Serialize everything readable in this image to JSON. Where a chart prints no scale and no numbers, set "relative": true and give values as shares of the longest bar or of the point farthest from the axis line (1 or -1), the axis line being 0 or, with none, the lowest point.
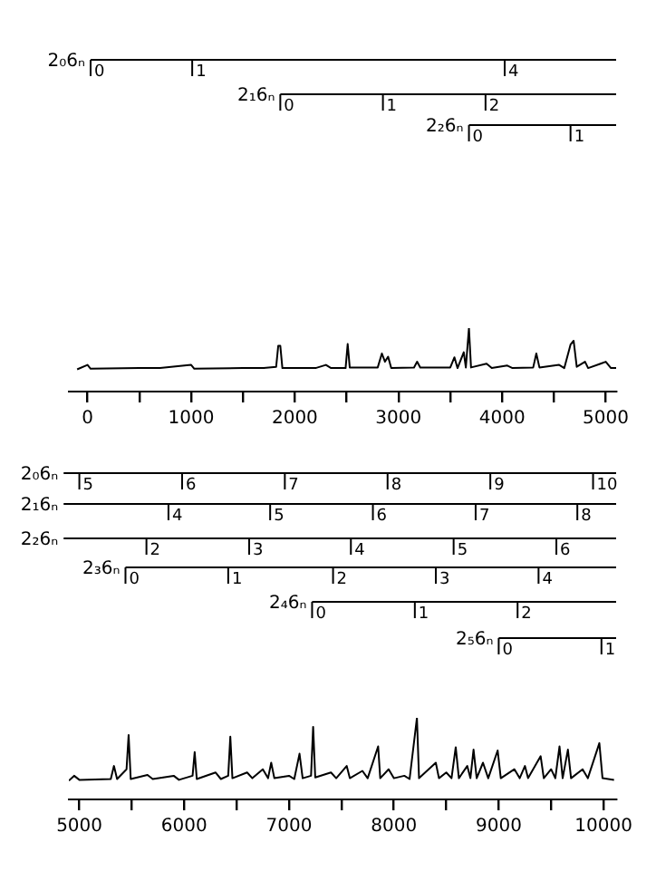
{
  "chart_data": [
    {
      "type": "line",
      "relative": true,
      "legend": false,
      "grid": false,
      "xlim": [
        -180,
        5100
      ],
      "xticks": [
        0,
        {
          "value": 500,
          "label": null
        },
        1000,
        {
          "value": 1500,
          "label": null
        },
        2000,
        {
          "value": 2500,
          "label": null
        },
        3000,
        {
          "value": 3500,
          "label": null
        },
        4000,
        {
          "value": 4500,
          "label": null
        },
        5000
      ],
      "series": [
        {
          "color": "#000000",
          "x": [
            -100,
            0,
            30,
            500,
            700,
            1000,
            1030,
            1500,
            1700,
            1820,
            1840,
            1860,
            1880,
            2200,
            2300,
            2350,
            2490,
            2510,
            2530,
            2800,
            2840,
            2870,
            2900,
            2930,
            3150,
            3180,
            3210,
            3500,
            3540,
            3570,
            3630,
            3650,
            3680,
            3700,
            3850,
            3900,
            4050,
            4100,
            4300,
            4330,
            4360,
            4550,
            4600,
            4660,
            4690,
            4720,
            4800,
            4830,
            4950,
            5000,
            5050,
            5100
          ],
          "values": [
            0.35,
            0.42,
            0.36,
            0.37,
            0.37,
            0.42,
            0.36,
            0.37,
            0.37,
            0.39,
            0.72,
            0.72,
            0.37,
            0.37,
            0.42,
            0.37,
            0.37,
            0.75,
            0.38,
            0.38,
            0.6,
            0.47,
            0.55,
            0.37,
            0.38,
            0.47,
            0.38,
            0.38,
            0.54,
            0.37,
            0.62,
            0.38,
            1,
            0.38,
            0.44,
            0.37,
            0.41,
            0.37,
            0.38,
            0.6,
            0.38,
            0.42,
            0.37,
            0.74,
            0.8,
            0.39,
            0.47,
            0.37,
            0.44,
            0.47,
            0.37,
            0.37
          ]
        }
      ],
      "annotations": [
        "2₀6ₙ",
        "0",
        "1",
        "4",
        "2₁6ₙ",
        "0",
        "1",
        "2",
        "2₂6ₙ",
        "0",
        "1"
      ]
    },
    {
      "type": "line",
      "relative": true,
      "legend": false,
      "grid": false,
      "xlim": [
        4900,
        10120
      ],
      "xticks": [
        5000,
        {
          "value": 5500,
          "label": null
        },
        6000,
        {
          "value": 6500,
          "label": null
        },
        7000,
        {
          "value": 7500,
          "label": null
        },
        8000,
        {
          "value": 8500,
          "label": null
        },
        9000,
        {
          "value": 9500,
          "label": null
        },
        10000
      ],
      "series": [
        {
          "color": "#000000",
          "x": [
            4900,
            4950,
            5000,
            5300,
            5330,
            5360,
            5450,
            5470,
            5490,
            5650,
            5700,
            5900,
            5950,
            6080,
            6100,
            6120,
            6300,
            6350,
            6420,
            6440,
            6460,
            6600,
            6650,
            6750,
            6800,
            6830,
            6860,
            7000,
            7050,
            7100,
            7130,
            7210,
            7230,
            7250,
            7400,
            7450,
            7550,
            7580,
            7700,
            7750,
            7850,
            7870,
            7950,
            8000,
            8100,
            8150,
            8220,
            8240,
            8400,
            8430,
            8500,
            8550,
            8590,
            8620,
            8700,
            8730,
            8760,
            8790,
            8850,
            8900,
            8990,
            9020,
            9150,
            9200,
            9250,
            9280,
            9400,
            9430,
            9500,
            9540,
            9580,
            9610,
            9660,
            9690,
            9800,
            9850,
            9960,
            9990,
            10100
          ],
          "values": [
            0.23,
            0.29,
            0.24,
            0.25,
            0.41,
            0.25,
            0.37,
            0.79,
            0.25,
            0.3,
            0.25,
            0.29,
            0.24,
            0.29,
            0.58,
            0.25,
            0.33,
            0.25,
            0.29,
            0.77,
            0.26,
            0.33,
            0.26,
            0.37,
            0.26,
            0.45,
            0.26,
            0.29,
            0.25,
            0.56,
            0.26,
            0.29,
            0.89,
            0.27,
            0.33,
            0.26,
            0.41,
            0.26,
            0.35,
            0.26,
            0.65,
            0.26,
            0.37,
            0.26,
            0.29,
            0.25,
            1,
            0.26,
            0.45,
            0.26,
            0.33,
            0.26,
            0.64,
            0.26,
            0.41,
            0.26,
            0.61,
            0.26,
            0.45,
            0.26,
            0.6,
            0.26,
            0.37,
            0.26,
            0.41,
            0.26,
            0.53,
            0.26,
            0.37,
            0.26,
            0.65,
            0.26,
            0.61,
            0.26,
            0.37,
            0.26,
            0.69,
            0.26,
            0.24
          ]
        }
      ],
      "annotations": [
        "2₀6ₙ",
        "5",
        "6",
        "7",
        "8",
        "9",
        "10",
        "2₁6ₙ",
        "4",
        "5",
        "6",
        "7",
        "8",
        "2₂6ₙ",
        "2",
        "3",
        "4",
        "5",
        "6",
        "2₃6ₙ",
        "0",
        "1",
        "2",
        "3",
        "4",
        "2₄6ₙ",
        "0",
        "1",
        "2",
        "2₅6ₙ",
        "0",
        "1"
      ]
    }
  ]
}
